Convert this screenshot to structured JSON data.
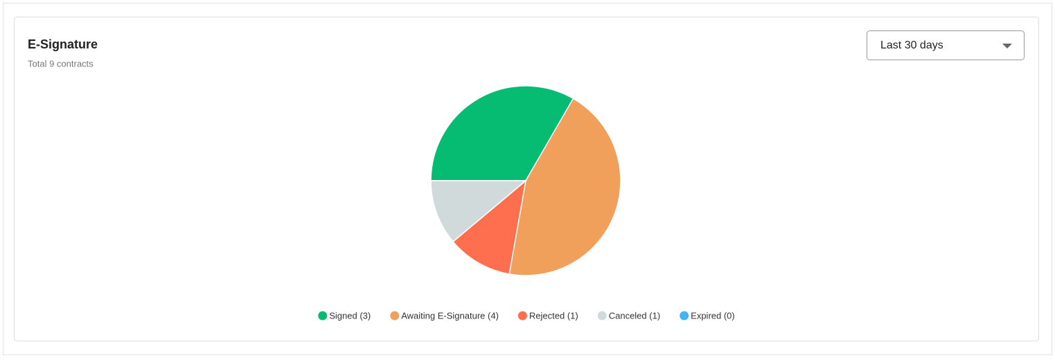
{
  "chart_data": {
    "type": "pie",
    "title": "E-Signature",
    "subtitle": "Total 9 contracts",
    "categories": [
      "Signed (3)",
      "Awaiting E-Signature (4)",
      "Rejected (1)",
      "Canceled (1)",
      "Expired (0)"
    ],
    "values": [
      3,
      4,
      1,
      1,
      0
    ],
    "colors": [
      "#06bb72",
      "#f0a05a",
      "#fe6f4f",
      "#d1dadb",
      "#42b5f5"
    ],
    "legend": "bottom"
  },
  "controls": {
    "period": "Last 30 days"
  }
}
